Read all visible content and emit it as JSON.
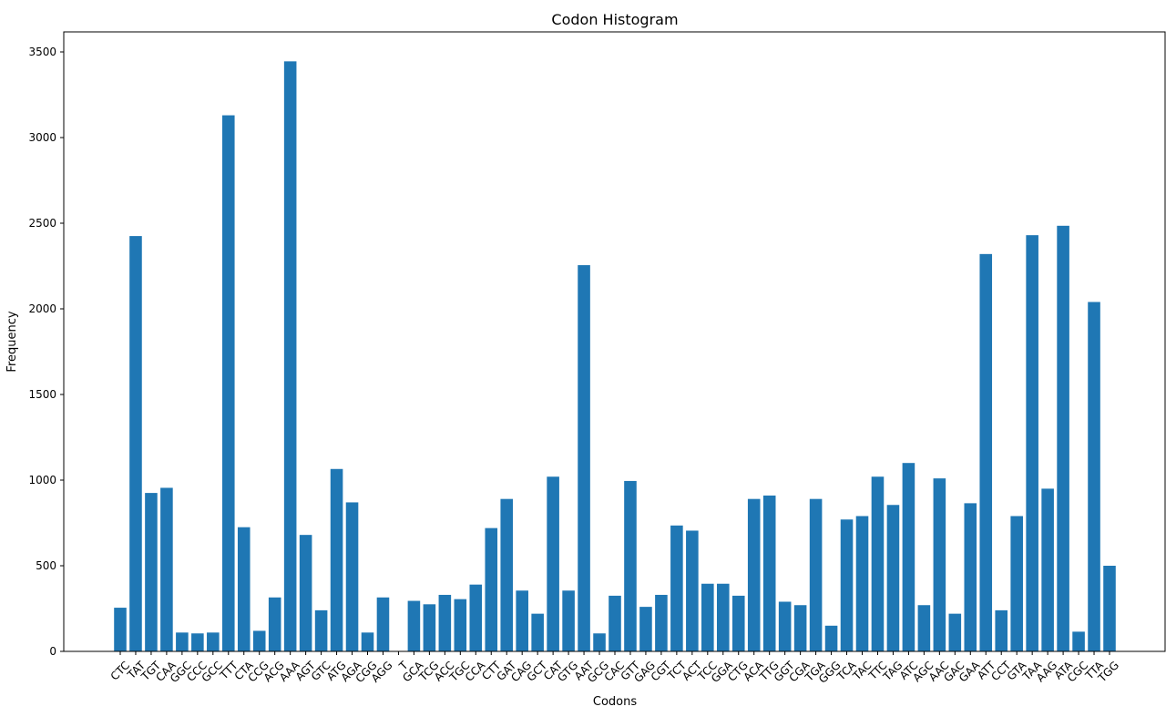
{
  "chart_data": {
    "type": "bar",
    "title": "Codon Histogram",
    "xlabel": "Codons",
    "ylabel": "Frequency",
    "ylim": [
      0,
      3600
    ],
    "yticks": [
      0,
      500,
      1000,
      1500,
      2000,
      2500,
      3000,
      3500
    ],
    "grid": false,
    "bar_color": "#1f77b4",
    "categories": [
      "CTC",
      "TAT",
      "TGT",
      "CAA",
      "GGC",
      "CCC",
      "GCC",
      "TTT",
      "CTA",
      "CCG",
      "ACG",
      "AAA",
      "AGT",
      "GTC",
      "ATG",
      "AGA",
      "CGG",
      "AGG",
      "T",
      "GCA",
      "TCG",
      "ACC",
      "TGC",
      "CCA",
      "CTT",
      "GAT",
      "CAG",
      "GCT",
      "CAT",
      "GTG",
      "AAT",
      "GCG",
      "CAC",
      "GTT",
      "GAG",
      "CGT",
      "TCT",
      "ACT",
      "TCC",
      "GGA",
      "CTG",
      "ACA",
      "TTG",
      "GGT",
      "CGA",
      "TGA",
      "GGG",
      "TCA",
      "TAC",
      "TTC",
      "TAG",
      "ATC",
      "AGC",
      "AAC",
      "GAC",
      "GAA",
      "ATT",
      "CCT",
      "GTA",
      "TAA",
      "AAG",
      "ATA",
      "CGC",
      "TTA",
      "TGG"
    ],
    "values": [
      255,
      2425,
      925,
      955,
      110,
      105,
      110,
      3130,
      725,
      120,
      315,
      3445,
      680,
      240,
      1065,
      870,
      110,
      315,
      0,
      295,
      275,
      330,
      305,
      390,
      720,
      890,
      355,
      220,
      1020,
      355,
      2255,
      105,
      325,
      995,
      260,
      330,
      735,
      705,
      395,
      395,
      325,
      890,
      910,
      290,
      270,
      890,
      150,
      770,
      790,
      1020,
      855,
      1100,
      270,
      1010,
      220,
      865,
      2320,
      240,
      790,
      2430,
      950,
      2485,
      115,
      2040,
      500
    ]
  }
}
